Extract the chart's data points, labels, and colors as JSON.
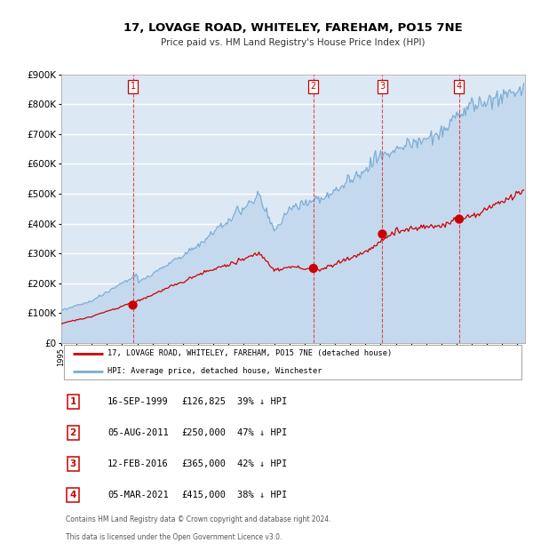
{
  "title": "17, LOVAGE ROAD, WHITELEY, FAREHAM, PO15 7NE",
  "subtitle": "Price paid vs. HM Land Registry's House Price Index (HPI)",
  "ylim": [
    0,
    900000
  ],
  "yticks": [
    0,
    100000,
    200000,
    300000,
    400000,
    500000,
    600000,
    700000,
    800000,
    900000
  ],
  "ytick_labels": [
    "£0",
    "£100K",
    "£200K",
    "£300K",
    "£400K",
    "£500K",
    "£600K",
    "£700K",
    "£800K",
    "£900K"
  ],
  "xlim_start": 1995.0,
  "xlim_end": 2025.5,
  "plot_bg_color": "#dde8f5",
  "grid_color": "#ffffff",
  "hpi_color": "#7aadd4",
  "hpi_fill_color": "#c5d9ee",
  "price_color": "#cc0000",
  "sale_marker_color": "#cc0000",
  "sale_points": [
    {
      "year": 1999.708,
      "price": 126825,
      "label": "1"
    },
    {
      "year": 2011.583,
      "price": 250000,
      "label": "2"
    },
    {
      "year": 2016.12,
      "price": 365000,
      "label": "3"
    },
    {
      "year": 2021.17,
      "price": 415000,
      "label": "4"
    }
  ],
  "vline_dates": [
    1999.708,
    2011.583,
    2016.12,
    2021.17
  ],
  "legend_line1": "17, LOVAGE ROAD, WHITELEY, FAREHAM, PO15 7NE (detached house)",
  "legend_line2": "HPI: Average price, detached house, Winchester",
  "table_rows": [
    {
      "num": "1",
      "date": "16-SEP-1999",
      "price": "£126,825",
      "hpi": "39% ↓ HPI"
    },
    {
      "num": "2",
      "date": "05-AUG-2011",
      "price": "£250,000",
      "hpi": "47% ↓ HPI"
    },
    {
      "num": "3",
      "date": "12-FEB-2016",
      "price": "£365,000",
      "hpi": "42% ↓ HPI"
    },
    {
      "num": "4",
      "date": "05-MAR-2021",
      "price": "£415,000",
      "hpi": "38% ↓ HPI"
    }
  ],
  "footnote1": "Contains HM Land Registry data © Crown copyright and database right 2024.",
  "footnote2": "This data is licensed under the Open Government Licence v3.0."
}
